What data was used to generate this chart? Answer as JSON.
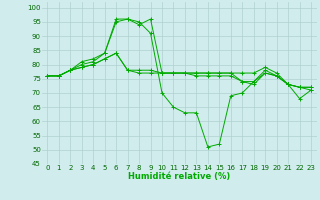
{
  "series": [
    {
      "x": [
        0,
        1,
        2,
        3,
        4,
        5,
        6,
        7,
        8,
        9,
        10,
        11,
        12,
        13,
        14,
        15,
        16,
        17,
        18,
        19,
        20,
        21,
        22,
        23
      ],
      "y": [
        76,
        76,
        78,
        80,
        81,
        84,
        95,
        96,
        95,
        91,
        70,
        65,
        63,
        63,
        51,
        52,
        69,
        70,
        74,
        78,
        76,
        73,
        68,
        71
      ],
      "color": "#00aa00"
    },
    {
      "x": [
        0,
        1,
        2,
        3,
        4,
        5,
        6,
        7,
        8,
        9,
        10,
        11,
        12,
        13,
        14,
        15,
        16,
        17,
        18,
        19,
        20,
        21,
        22,
        23
      ],
      "y": [
        76,
        76,
        78,
        81,
        82,
        84,
        96,
        96,
        94,
        96,
        77,
        77,
        77,
        77,
        77,
        77,
        77,
        77,
        77,
        79,
        77,
        73,
        72,
        72
      ],
      "color": "#00aa00"
    },
    {
      "x": [
        0,
        1,
        2,
        3,
        4,
        5,
        6,
        7,
        8,
        9,
        10,
        11,
        12,
        13,
        14,
        15,
        16,
        17,
        18,
        19,
        20,
        21,
        22,
        23
      ],
      "y": [
        76,
        76,
        78,
        79,
        80,
        82,
        84,
        78,
        78,
        78,
        77,
        77,
        77,
        76,
        76,
        76,
        76,
        74,
        74,
        77,
        76,
        73,
        72,
        72
      ],
      "color": "#00aa00"
    },
    {
      "x": [
        0,
        1,
        2,
        3,
        4,
        5,
        6,
        7,
        8,
        9,
        10,
        11,
        12,
        13,
        14,
        15,
        16,
        17,
        18,
        19,
        20,
        21,
        22,
        23
      ],
      "y": [
        76,
        76,
        78,
        79,
        80,
        82,
        84,
        78,
        77,
        77,
        77,
        77,
        77,
        77,
        77,
        77,
        77,
        74,
        73,
        77,
        76,
        73,
        72,
        71
      ],
      "color": "#00aa00"
    }
  ],
  "xlim": [
    -0.5,
    23.5
  ],
  "ylim": [
    45,
    102
  ],
  "yticks": [
    45,
    50,
    55,
    60,
    65,
    70,
    75,
    80,
    85,
    90,
    95,
    100
  ],
  "xticks": [
    0,
    1,
    2,
    3,
    4,
    5,
    6,
    7,
    8,
    9,
    10,
    11,
    12,
    13,
    14,
    15,
    16,
    17,
    18,
    19,
    20,
    21,
    22,
    23
  ],
  "xlabel": "Humidité relative (%)",
  "bg_color": "#d0ecec",
  "grid_color": "#b0d0d0",
  "line_color": "#00aa00",
  "label_fontsize": 6,
  "tick_fontsize": 5
}
